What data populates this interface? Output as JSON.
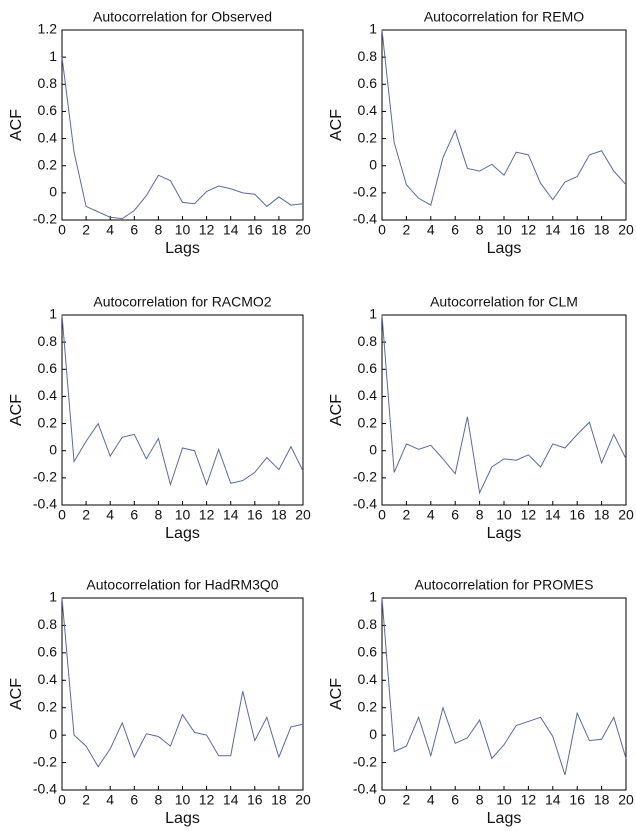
{
  "chart_data": [
    {
      "type": "line",
      "title": "Autocorrelation for Observed",
      "xlabel": "Lags",
      "ylabel": "ACF",
      "color": "#5a6aa0",
      "x": [
        0,
        1,
        2,
        3,
        4,
        5,
        6,
        7,
        8,
        9,
        10,
        11,
        12,
        13,
        14,
        15,
        16,
        17,
        18,
        19,
        20
      ],
      "values": [
        1,
        0.3,
        -0.1,
        -0.14,
        -0.18,
        -0.19,
        -0.13,
        -0.02,
        0.13,
        0.09,
        -0.07,
        -0.08,
        0.01,
        0.05,
        0.03,
        0,
        -0.01,
        -0.1,
        -0.03,
        -0.09,
        -0.08
      ],
      "xlim": [
        0,
        20
      ],
      "ylim": [
        -0.2,
        1.2
      ],
      "xticks": [
        0,
        2,
        4,
        6,
        8,
        10,
        12,
        14,
        16,
        18,
        20
      ],
      "yticks": [
        -0.2,
        0,
        0.2,
        0.4,
        0.6,
        0.8,
        1,
        1.2
      ]
    },
    {
      "type": "line",
      "title": "Autocorrelation for REMO",
      "xlabel": "Lags",
      "ylabel": "ACF",
      "color": "#5a6aa0",
      "x": [
        0,
        1,
        2,
        3,
        4,
        5,
        6,
        7,
        8,
        9,
        10,
        11,
        12,
        13,
        14,
        15,
        16,
        17,
        18,
        19,
        20
      ],
      "values": [
        1,
        0.17,
        -0.14,
        -0.24,
        -0.29,
        0.06,
        0.26,
        -0.02,
        -0.04,
        0.01,
        -0.07,
        0.1,
        0.08,
        -0.13,
        -0.25,
        -0.12,
        -0.08,
        0.08,
        0.11,
        -0.04,
        -0.14
      ],
      "xlim": [
        0,
        20
      ],
      "ylim": [
        -0.4,
        1
      ],
      "xticks": [
        0,
        2,
        4,
        6,
        8,
        10,
        12,
        14,
        16,
        18,
        20
      ],
      "yticks": [
        -0.4,
        -0.2,
        0,
        0.2,
        0.4,
        0.6,
        0.8,
        1
      ]
    },
    {
      "type": "line",
      "title": "Autocorrelation for RACMO2",
      "xlabel": "Lags",
      "ylabel": "ACF",
      "color": "#5a6aa0",
      "x": [
        0,
        1,
        2,
        3,
        4,
        5,
        6,
        7,
        8,
        9,
        10,
        11,
        12,
        13,
        14,
        15,
        16,
        17,
        18,
        19,
        20
      ],
      "values": [
        1,
        -0.08,
        0.07,
        0.2,
        -0.04,
        0.1,
        0.12,
        -0.06,
        0.09,
        -0.25,
        0.02,
        0,
        -0.25,
        0.01,
        -0.24,
        -0.22,
        -0.16,
        -0.05,
        -0.14,
        0.03,
        -0.15
      ],
      "xlim": [
        0,
        20
      ],
      "ylim": [
        -0.4,
        1
      ],
      "xticks": [
        0,
        2,
        4,
        6,
        8,
        10,
        12,
        14,
        16,
        18,
        20
      ],
      "yticks": [
        -0.4,
        -0.2,
        0,
        0.2,
        0.4,
        0.6,
        0.8,
        1
      ]
    },
    {
      "type": "line",
      "title": "Autocorrelation for CLM",
      "xlabel": "Lags",
      "ylabel": "ACF",
      "color": "#5a6aa0",
      "x": [
        0,
        1,
        2,
        3,
        4,
        5,
        6,
        7,
        8,
        9,
        10,
        11,
        12,
        13,
        14,
        15,
        16,
        17,
        18,
        19,
        20
      ],
      "values": [
        1,
        -0.16,
        0.05,
        0.01,
        0.04,
        -0.06,
        -0.17,
        0.25,
        -0.31,
        -0.12,
        -0.06,
        -0.07,
        -0.03,
        -0.12,
        0.05,
        0.02,
        0.12,
        0.21,
        -0.09,
        0.12,
        -0.06
      ],
      "xlim": [
        0,
        20
      ],
      "ylim": [
        -0.4,
        1
      ],
      "xticks": [
        0,
        2,
        4,
        6,
        8,
        10,
        12,
        14,
        16,
        18,
        20
      ],
      "yticks": [
        -0.4,
        -0.2,
        0,
        0.2,
        0.4,
        0.6,
        0.8,
        1
      ]
    },
    {
      "type": "line",
      "title": "Autocorrelation for HadRM3Q0",
      "xlabel": "Lags",
      "ylabel": "ACF",
      "color": "#5a6aa0",
      "x": [
        0,
        1,
        2,
        3,
        4,
        5,
        6,
        7,
        8,
        9,
        10,
        11,
        12,
        13,
        14,
        15,
        16,
        17,
        18,
        19,
        20
      ],
      "values": [
        1,
        0,
        -0.08,
        -0.23,
        -0.1,
        0.09,
        -0.16,
        0.01,
        -0.01,
        -0.08,
        0.15,
        0.02,
        0,
        -0.15,
        -0.15,
        0.32,
        -0.04,
        0.13,
        -0.16,
        0.06,
        0.08
      ],
      "xlim": [
        0,
        20
      ],
      "ylim": [
        -0.4,
        1
      ],
      "xticks": [
        0,
        2,
        4,
        6,
        8,
        10,
        12,
        14,
        16,
        18,
        20
      ],
      "yticks": [
        -0.4,
        -0.2,
        0,
        0.2,
        0.4,
        0.6,
        0.8,
        1
      ]
    },
    {
      "type": "line",
      "title": "Autocorrelation for PROMES",
      "xlabel": "Lags",
      "ylabel": "ACF",
      "color": "#5a6aa0",
      "x": [
        0,
        1,
        2,
        3,
        4,
        5,
        6,
        7,
        8,
        9,
        10,
        11,
        12,
        13,
        14,
        15,
        16,
        17,
        18,
        19,
        20
      ],
      "values": [
        1,
        -0.12,
        -0.08,
        0.13,
        -0.15,
        0.2,
        -0.06,
        -0.02,
        0.11,
        -0.17,
        -0.07,
        0.07,
        0.1,
        0.13,
        -0.01,
        -0.29,
        0.16,
        -0.04,
        -0.03,
        0.13,
        -0.17
      ],
      "xlim": [
        0,
        20
      ],
      "ylim": [
        -0.4,
        1
      ],
      "xticks": [
        0,
        2,
        4,
        6,
        8,
        10,
        12,
        14,
        16,
        18,
        20
      ],
      "yticks": [
        -0.4,
        -0.2,
        0,
        0.2,
        0.4,
        0.6,
        0.8,
        1
      ]
    }
  ]
}
